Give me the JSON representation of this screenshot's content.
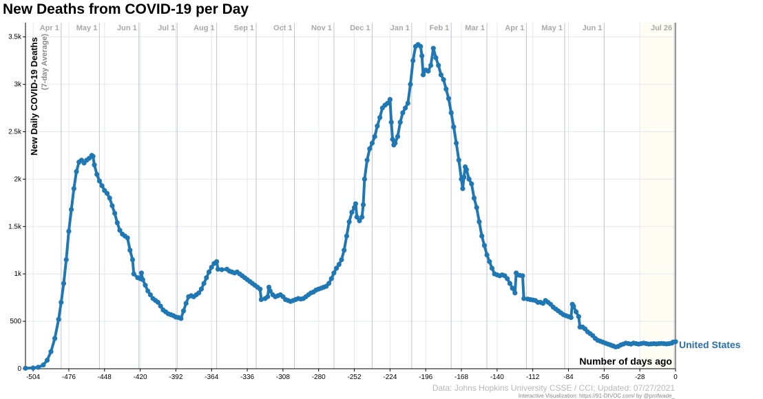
{
  "chart_data": {
    "type": "line",
    "title": "New Deaths from COVID-19 per Day",
    "ylabel": "New Daily COVID-19 Deaths",
    "ylabel_sub": "(7-day Average)",
    "xlabel": "Number of days ago",
    "xlim": [
      -510,
      0
    ],
    "ylim": [
      0,
      3650
    ],
    "x_ticks": [
      -504,
      -476,
      -448,
      -420,
      -392,
      -364,
      -336,
      -308,
      -280,
      -252,
      -224,
      -196,
      -168,
      -140,
      -112,
      -84,
      -56,
      -28,
      0
    ],
    "y_ticks": [
      {
        "value": 0,
        "label": "0"
      },
      {
        "value": 500,
        "label": "500"
      },
      {
        "value": 1000,
        "label": "1k"
      },
      {
        "value": 1500,
        "label": "1.5k"
      },
      {
        "value": 2000,
        "label": "2k"
      },
      {
        "value": 2500,
        "label": "2.5k"
      },
      {
        "value": 3000,
        "label": "3k"
      },
      {
        "value": 3500,
        "label": "3.5k"
      }
    ],
    "month_markers": [
      {
        "x": -482,
        "label": "Apr 1"
      },
      {
        "x": -452,
        "label": "May 1"
      },
      {
        "x": -421,
        "label": "Jun 1"
      },
      {
        "x": -391,
        "label": "Jul 1"
      },
      {
        "x": -360,
        "label": "Aug 1"
      },
      {
        "x": -329,
        "label": "Sep 1"
      },
      {
        "x": -299,
        "label": "Oct 1"
      },
      {
        "x": -268,
        "label": "Nov 1"
      },
      {
        "x": -238,
        "label": "Dec 1"
      },
      {
        "x": -207,
        "label": "Jan 1"
      },
      {
        "x": -176,
        "label": "Feb 1"
      },
      {
        "x": -148,
        "label": "Mar 1"
      },
      {
        "x": -117,
        "label": "Apr 1"
      },
      {
        "x": -87,
        "label": "May 1"
      },
      {
        "x": -56,
        "label": "Jun 1"
      },
      {
        "x": -1,
        "label": "Jul 26"
      }
    ],
    "series": [
      {
        "name": "United States",
        "color": "#1f77b4",
        "points": [
          [
            -510,
            5
          ],
          [
            -504,
            8
          ],
          [
            -500,
            15
          ],
          [
            -496,
            40
          ],
          [
            -493,
            90
          ],
          [
            -490,
            180
          ],
          [
            -487,
            320
          ],
          [
            -484,
            520
          ],
          [
            -482,
            700
          ],
          [
            -480,
            900
          ],
          [
            -478,
            1150
          ],
          [
            -476,
            1450
          ],
          [
            -474,
            1680
          ],
          [
            -472,
            1900
          ],
          [
            -470,
            2080
          ],
          [
            -468,
            2180
          ],
          [
            -466,
            2200
          ],
          [
            -464,
            2170
          ],
          [
            -462,
            2200
          ],
          [
            -460,
            2220
          ],
          [
            -458,
            2250
          ],
          [
            -457,
            2240
          ],
          [
            -456,
            2150
          ],
          [
            -454,
            2050
          ],
          [
            -452,
            1980
          ],
          [
            -450,
            1930
          ],
          [
            -448,
            1880
          ],
          [
            -446,
            1850
          ],
          [
            -444,
            1800
          ],
          [
            -442,
            1720
          ],
          [
            -440,
            1640
          ],
          [
            -438,
            1540
          ],
          [
            -436,
            1460
          ],
          [
            -434,
            1420
          ],
          [
            -432,
            1400
          ],
          [
            -430,
            1380
          ],
          [
            -428,
            1250
          ],
          [
            -426,
            1150
          ],
          [
            -425,
            1000
          ],
          [
            -422,
            960
          ],
          [
            -420,
            950
          ],
          [
            -419,
            1010
          ],
          [
            -418,
            940
          ],
          [
            -416,
            880
          ],
          [
            -414,
            820
          ],
          [
            -412,
            780
          ],
          [
            -410,
            740
          ],
          [
            -408,
            720
          ],
          [
            -406,
            700
          ],
          [
            -404,
            660
          ],
          [
            -402,
            620
          ],
          [
            -400,
            600
          ],
          [
            -398,
            580
          ],
          [
            -396,
            570
          ],
          [
            -394,
            560
          ],
          [
            -392,
            545
          ],
          [
            -390,
            540
          ],
          [
            -388,
            530
          ],
          [
            -386,
            610
          ],
          [
            -384,
            690
          ],
          [
            -382,
            760
          ],
          [
            -380,
            770
          ],
          [
            -378,
            760
          ],
          [
            -376,
            780
          ],
          [
            -374,
            800
          ],
          [
            -372,
            840
          ],
          [
            -370,
            900
          ],
          [
            -368,
            960
          ],
          [
            -366,
            1020
          ],
          [
            -364,
            1070
          ],
          [
            -362,
            1110
          ],
          [
            -360,
            1130
          ],
          [
            -359,
            1050
          ],
          [
            -356,
            1045
          ],
          [
            -352,
            1050
          ],
          [
            -350,
            1030
          ],
          [
            -348,
            1020
          ],
          [
            -346,
            1010
          ],
          [
            -344,
            1020
          ],
          [
            -342,
            1000
          ],
          [
            -340,
            980
          ],
          [
            -338,
            960
          ],
          [
            -336,
            940
          ],
          [
            -334,
            920
          ],
          [
            -332,
            900
          ],
          [
            -330,
            880
          ],
          [
            -328,
            860
          ],
          [
            -326,
            840
          ],
          [
            -325,
            730
          ],
          [
            -322,
            740
          ],
          [
            -320,
            760
          ],
          [
            -319,
            860
          ],
          [
            -318,
            820
          ],
          [
            -316,
            780
          ],
          [
            -314,
            760
          ],
          [
            -312,
            770
          ],
          [
            -310,
            780
          ],
          [
            -308,
            760
          ],
          [
            -306,
            730
          ],
          [
            -304,
            720
          ],
          [
            -302,
            710
          ],
          [
            -300,
            720
          ],
          [
            -298,
            730
          ],
          [
            -296,
            740
          ],
          [
            -294,
            735
          ],
          [
            -292,
            740
          ],
          [
            -290,
            760
          ],
          [
            -288,
            780
          ],
          [
            -286,
            800
          ],
          [
            -284,
            810
          ],
          [
            -282,
            830
          ],
          [
            -280,
            840
          ],
          [
            -278,
            850
          ],
          [
            -276,
            860
          ],
          [
            -274,
            870
          ],
          [
            -272,
            900
          ],
          [
            -270,
            950
          ],
          [
            -268,
            1010
          ],
          [
            -266,
            1060
          ],
          [
            -264,
            1100
          ],
          [
            -262,
            1150
          ],
          [
            -260,
            1250
          ],
          [
            -258,
            1400
          ],
          [
            -256,
            1550
          ],
          [
            -254,
            1650
          ],
          [
            -252,
            1700
          ],
          [
            -251,
            1740
          ],
          [
            -250,
            1600
          ],
          [
            -248,
            1560
          ],
          [
            -246,
            1600
          ],
          [
            -245,
            1730
          ],
          [
            -244,
            2000
          ],
          [
            -242,
            2200
          ],
          [
            -240,
            2320
          ],
          [
            -238,
            2380
          ],
          [
            -236,
            2450
          ],
          [
            -234,
            2560
          ],
          [
            -232,
            2650
          ],
          [
            -230,
            2750
          ],
          [
            -228,
            2780
          ],
          [
            -226,
            2800
          ],
          [
            -224,
            2840
          ],
          [
            -223,
            2600
          ],
          [
            -222,
            2420
          ],
          [
            -221,
            2360
          ],
          [
            -220,
            2380
          ],
          [
            -218,
            2450
          ],
          [
            -216,
            2600
          ],
          [
            -214,
            2700
          ],
          [
            -212,
            2750
          ],
          [
            -210,
            2800
          ],
          [
            -208,
            3000
          ],
          [
            -206,
            3250
          ],
          [
            -204,
            3400
          ],
          [
            -202,
            3420
          ],
          [
            -200,
            3400
          ],
          [
            -199,
            3300
          ],
          [
            -198,
            3100
          ],
          [
            -196,
            3150
          ],
          [
            -194,
            3140
          ],
          [
            -192,
            3200
          ],
          [
            -190,
            3380
          ],
          [
            -188,
            3280
          ],
          [
            -186,
            3200
          ],
          [
            -184,
            3100
          ],
          [
            -182,
            3050
          ],
          [
            -180,
            2950
          ],
          [
            -178,
            2850
          ],
          [
            -176,
            2700
          ],
          [
            -174,
            2550
          ],
          [
            -172,
            2380
          ],
          [
            -170,
            2200
          ],
          [
            -168,
            2000
          ],
          [
            -167,
            1900
          ],
          [
            -166,
            2020
          ],
          [
            -165,
            2130
          ],
          [
            -164,
            2100
          ],
          [
            -162,
            2000
          ],
          [
            -160,
            1950
          ],
          [
            -158,
            1800
          ],
          [
            -156,
            1700
          ],
          [
            -154,
            1550
          ],
          [
            -152,
            1400
          ],
          [
            -150,
            1300
          ],
          [
            -148,
            1200
          ],
          [
            -146,
            1130
          ],
          [
            -144,
            1060
          ],
          [
            -142,
            1000
          ],
          [
            -140,
            990
          ],
          [
            -138,
            980
          ],
          [
            -136,
            990
          ],
          [
            -134,
            980
          ],
          [
            -132,
            950
          ],
          [
            -130,
            900
          ],
          [
            -128,
            850
          ],
          [
            -126,
            800
          ],
          [
            -125,
            1010
          ],
          [
            -124,
            990
          ],
          [
            -122,
            985
          ],
          [
            -120,
            980
          ],
          [
            -119,
            740
          ],
          [
            -116,
            735
          ],
          [
            -114,
            730
          ],
          [
            -112,
            725
          ],
          [
            -110,
            720
          ],
          [
            -108,
            700
          ],
          [
            -106,
            700
          ],
          [
            -104,
            690
          ],
          [
            -102,
            720
          ],
          [
            -100,
            700
          ],
          [
            -98,
            680
          ],
          [
            -96,
            650
          ],
          [
            -94,
            630
          ],
          [
            -92,
            610
          ],
          [
            -90,
            590
          ],
          [
            -88,
            570
          ],
          [
            -86,
            560
          ],
          [
            -84,
            550
          ],
          [
            -82,
            540
          ],
          [
            -81,
            680
          ],
          [
            -80,
            660
          ],
          [
            -78,
            600
          ],
          [
            -76,
            550
          ],
          [
            -75,
            440
          ],
          [
            -73,
            440
          ],
          [
            -71,
            420
          ],
          [
            -69,
            390
          ],
          [
            -67,
            370
          ],
          [
            -65,
            350
          ],
          [
            -63,
            320
          ],
          [
            -61,
            300
          ],
          [
            -59,
            290
          ],
          [
            -57,
            280
          ],
          [
            -55,
            270
          ],
          [
            -53,
            260
          ],
          [
            -51,
            250
          ],
          [
            -49,
            240
          ],
          [
            -47,
            230
          ],
          [
            -45,
            235
          ],
          [
            -43,
            250
          ],
          [
            -41,
            260
          ],
          [
            -39,
            270
          ],
          [
            -37,
            265
          ],
          [
            -35,
            260
          ],
          [
            -33,
            270
          ],
          [
            -31,
            265
          ],
          [
            -29,
            260
          ],
          [
            -27,
            265
          ],
          [
            -25,
            270
          ],
          [
            -23,
            265
          ],
          [
            -21,
            260
          ],
          [
            -19,
            262
          ],
          [
            -17,
            264
          ],
          [
            -15,
            262
          ],
          [
            -13,
            265
          ],
          [
            -11,
            267
          ],
          [
            -9,
            264
          ],
          [
            -7,
            262
          ],
          [
            -5,
            265
          ],
          [
            -3,
            270
          ],
          [
            -2,
            280
          ],
          [
            0,
            285
          ]
        ]
      }
    ],
    "label_series": "United States"
  },
  "credits": {
    "data": "Data: Johns Hopkins University CSSE / CCI; Updated: 07/27/2021",
    "viz": "Interactive Visualization: https://91-DIVOC.com/ by @profwade_"
  },
  "colors": {
    "series": "#1f77b4",
    "label": "#2a6ea8",
    "grid": "#e4e6ee",
    "month_line": "#c0c3cf",
    "month_text": "#a8a8a8"
  }
}
